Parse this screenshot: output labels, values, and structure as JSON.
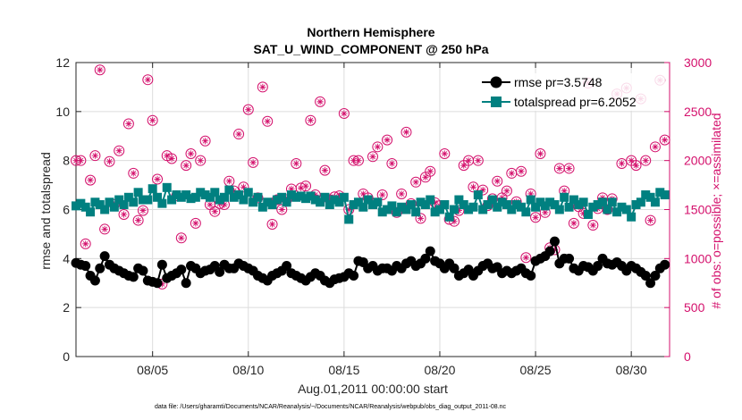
{
  "chart_data": {
    "type": "line",
    "title": "Northern Hemisphere",
    "subtitle": "SAT_U_WIND_COMPONENT @ 250 hPa",
    "xlabel": "Aug.01,2011 00:00:00 start",
    "ylabel": "rmse and totalspread",
    "y2label": "# of obs: o=possible; ×=assimilated",
    "footnote": "data file: /Users/gharamti/Documents/NCAR/Reanalysis/~/Documents/NCAR/Reanalysis/webpub/obs_diag_output_2011-08.nc",
    "xlim": [
      1,
      32
    ],
    "ylim": [
      0,
      12
    ],
    "y2lim": [
      0,
      3000
    ],
    "xticks": [
      5,
      10,
      15,
      20,
      25,
      30
    ],
    "xtick_labels": [
      "08/05",
      "08/10",
      "08/15",
      "08/20",
      "08/25",
      "08/30"
    ],
    "yticks": [
      0,
      2,
      4,
      6,
      8,
      10,
      12
    ],
    "y2ticks": [
      0,
      500,
      1000,
      1500,
      2000,
      2500,
      3000
    ],
    "grid": true,
    "legend_position": "top-right",
    "colors": {
      "rmse": "#000000",
      "totalspread": "#008080",
      "obs": "#d4106c",
      "grid": "#dcdcdc"
    },
    "x": [
      1.0,
      1.25,
      1.5,
      1.75,
      2.0,
      2.25,
      2.5,
      2.75,
      3.0,
      3.25,
      3.5,
      3.75,
      4.0,
      4.25,
      4.5,
      4.75,
      5.0,
      5.25,
      5.5,
      5.75,
      6.0,
      6.25,
      6.5,
      6.75,
      7.0,
      7.25,
      7.5,
      7.75,
      8.0,
      8.25,
      8.5,
      8.75,
      9.0,
      9.25,
      9.5,
      9.75,
      10.0,
      10.25,
      10.5,
      10.75,
      11.0,
      11.25,
      11.5,
      11.75,
      12.0,
      12.25,
      12.5,
      12.75,
      13.0,
      13.25,
      13.5,
      13.75,
      14.0,
      14.25,
      14.5,
      14.75,
      15.0,
      15.25,
      15.5,
      15.75,
      16.0,
      16.25,
      16.5,
      16.75,
      17.0,
      17.25,
      17.5,
      17.75,
      18.0,
      18.25,
      18.5,
      18.75,
      19.0,
      19.25,
      19.5,
      19.75,
      20.0,
      20.25,
      20.5,
      20.75,
      21.0,
      21.25,
      21.5,
      21.75,
      22.0,
      22.25,
      22.5,
      22.75,
      23.0,
      23.25,
      23.5,
      23.75,
      24.0,
      24.25,
      24.5,
      24.75,
      25.0,
      25.25,
      25.5,
      25.75,
      26.0,
      26.25,
      26.5,
      26.75,
      27.0,
      27.25,
      27.5,
      27.75,
      28.0,
      28.25,
      28.5,
      28.75,
      29.0,
      29.25,
      29.5,
      29.75,
      30.0,
      30.25,
      30.5,
      30.75,
      31.0,
      31.25,
      31.5,
      31.75
    ],
    "series": [
      {
        "name": "rmse pr=3.5748",
        "axis": "left",
        "marker": "circle",
        "values": [
          3.82,
          3.75,
          3.7,
          3.3,
          3.1,
          3.6,
          4.1,
          3.75,
          3.6,
          3.5,
          3.4,
          3.3,
          3.25,
          3.6,
          3.5,
          3.1,
          3.05,
          3.0,
          3.75,
          3.2,
          3.3,
          3.4,
          3.55,
          3.0,
          3.7,
          3.6,
          3.4,
          3.5,
          3.55,
          3.7,
          3.45,
          3.75,
          3.6,
          3.6,
          3.8,
          3.7,
          3.6,
          3.5,
          3.3,
          3.2,
          3.1,
          3.3,
          3.4,
          3.5,
          3.7,
          3.4,
          3.3,
          3.2,
          3.1,
          3.25,
          3.4,
          3.3,
          3.1,
          3.0,
          3.15,
          3.2,
          3.25,
          3.4,
          3.3,
          3.9,
          3.85,
          3.6,
          3.7,
          3.5,
          3.6,
          3.6,
          3.5,
          3.7,
          3.6,
          3.8,
          3.9,
          3.7,
          3.8,
          4.0,
          4.3,
          3.9,
          3.8,
          3.6,
          3.8,
          3.6,
          3.3,
          3.4,
          3.55,
          3.3,
          3.5,
          3.7,
          3.8,
          3.6,
          3.65,
          3.4,
          3.5,
          3.4,
          3.5,
          3.6,
          3.4,
          3.3,
          3.9,
          4.0,
          4.1,
          4.3,
          4.7,
          3.8,
          4.0,
          4.0,
          3.6,
          3.5,
          3.7,
          3.65,
          3.5,
          3.7,
          4.0,
          3.8,
          3.75,
          3.85,
          3.7,
          3.5,
          3.7,
          3.6,
          3.45,
          3.3,
          3.0,
          3.3,
          3.6,
          3.75
        ]
      },
      {
        "name": "totalspread pr=6.2052",
        "axis": "left",
        "marker": "square",
        "values": [
          6.15,
          6.25,
          6.1,
          5.9,
          6.3,
          6.2,
          6.0,
          6.3,
          6.1,
          6.4,
          6.2,
          6.5,
          6.3,
          6.7,
          6.4,
          6.4,
          6.85,
          6.5,
          6.25,
          6.9,
          6.4,
          6.6,
          6.5,
          6.6,
          6.45,
          6.5,
          6.7,
          6.6,
          6.5,
          6.7,
          6.4,
          6.5,
          6.8,
          6.5,
          6.6,
          6.4,
          6.7,
          6.3,
          6.5,
          6.1,
          6.3,
          6.2,
          6.4,
          6.5,
          6.3,
          6.6,
          6.5,
          6.55,
          6.45,
          6.55,
          6.4,
          6.3,
          6.5,
          6.2,
          6.4,
          6.3,
          6.5,
          5.6,
          6.2,
          6.3,
          6.1,
          6.4,
          6.2,
          6.3,
          5.9,
          6.0,
          6.15,
          5.9,
          6.1,
          6.0,
          6.2,
          5.9,
          6.3,
          6.2,
          6.4,
          5.9,
          6.0,
          6.2,
          5.7,
          6.0,
          6.4,
          6.2,
          6.0,
          6.1,
          6.6,
          6.0,
          6.2,
          6.4,
          6.1,
          6.3,
          6.2,
          6.0,
          6.2,
          6.1,
          5.9,
          6.4,
          6.1,
          6.3,
          6.15,
          6.3,
          6.2,
          6.0,
          6.5,
          6.1,
          6.4,
          6.2,
          6.3,
          5.8,
          6.1,
          6.2,
          6.3,
          6.0,
          6.3,
          5.9,
          6.1,
          6.0,
          5.7,
          6.2,
          6.3,
          6.6,
          6.5,
          6.3,
          6.7,
          6.6
        ]
      },
      {
        "name": "# of obs",
        "axis": "right",
        "marker": "circle-star",
        "values": [
          2000,
          2000,
          1150,
          1800,
          2050,
          2925,
          1300,
          1990,
          1550,
          2100,
          1450,
          2375,
          1870,
          1390,
          1490,
          2825,
          2410,
          1810,
          740,
          2050,
          2020,
          1640,
          1210,
          1950,
          2070,
          1360,
          2000,
          2200,
          1550,
          1480,
          1560,
          1550,
          1790,
          1690,
          2270,
          1730,
          2520,
          1980,
          1620,
          2750,
          2400,
          1350,
          1600,
          1500,
          1600,
          1710,
          1970,
          1720,
          1740,
          2410,
          1650,
          2600,
          1900,
          1600,
          1630,
          1640,
          2480,
          1500,
          2000,
          2000,
          1660,
          1620,
          2040,
          2140,
          1650,
          2210,
          1970,
          1470,
          1660,
          2290,
          1560,
          1780,
          1410,
          1830,
          1890,
          1570,
          1540,
          2070,
          1400,
          1380,
          1490,
          1950,
          2000,
          1730,
          2000,
          1700,
          1540,
          1610,
          1790,
          1620,
          1690,
          1870,
          1580,
          1890,
          1010,
          1660,
          1420,
          2070,
          1470,
          1110,
          1090,
          1920,
          1690,
          1920,
          1360,
          1530,
          1460,
          2790,
          1340,
          1510,
          1620,
          1500,
          1610,
          2680,
          1970,
          2740,
          2000,
          1950,
          2630,
          2000,
          1390,
          2140,
          2820,
          2210
        ]
      }
    ]
  }
}
